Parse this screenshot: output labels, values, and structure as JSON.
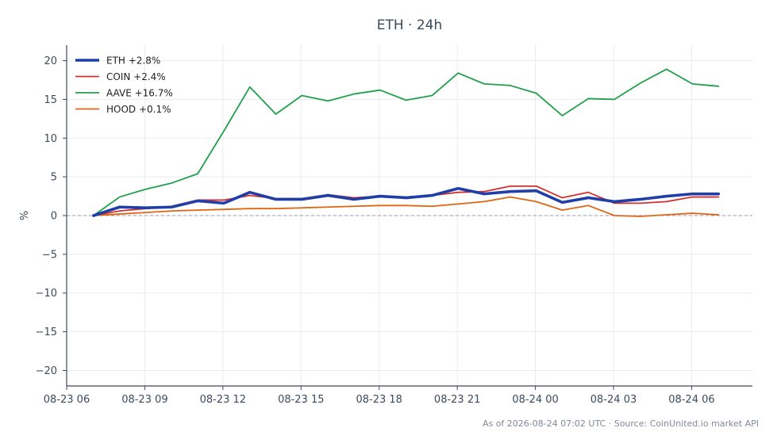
{
  "chart_data": {
    "type": "line",
    "title": "ETH · 24h",
    "xlabel": "",
    "ylabel": "%",
    "ylim": [
      -22,
      22
    ],
    "yticks": [
      -20,
      -15,
      -10,
      -5,
      0,
      5,
      10,
      15,
      20
    ],
    "ytick_labels": [
      "−20",
      "−15",
      "−10",
      "−5",
      "0",
      "5",
      "10",
      "15",
      "20"
    ],
    "xlim": [
      "2026-08-23 06:00",
      "2026-08-24 08:20"
    ],
    "xticks": [
      "2026-08-23 06:00",
      "2026-08-23 09:00",
      "2026-08-23 12:00",
      "2026-08-23 15:00",
      "2026-08-23 18:00",
      "2026-08-23 21:00",
      "2026-08-24 00:00",
      "2026-08-24 03:00",
      "2026-08-24 06:00"
    ],
    "xtick_labels": [
      "08-23 06",
      "08-23 09",
      "08-23 12",
      "08-23 15",
      "08-23 18",
      "08-23 21",
      "08-24 00",
      "08-24 03",
      "08-24 06"
    ],
    "x": [
      "2026-08-23 07:02",
      "2026-08-23 08:02",
      "2026-08-23 09:02",
      "2026-08-23 10:02",
      "2026-08-23 11:02",
      "2026-08-23 12:02",
      "2026-08-23 13:02",
      "2026-08-23 14:02",
      "2026-08-23 15:02",
      "2026-08-23 16:02",
      "2026-08-23 17:02",
      "2026-08-23 18:02",
      "2026-08-23 19:02",
      "2026-08-23 20:02",
      "2026-08-23 21:02",
      "2026-08-23 22:02",
      "2026-08-23 23:02",
      "2026-08-24 00:02",
      "2026-08-24 01:02",
      "2026-08-24 02:02",
      "2026-08-24 03:02",
      "2026-08-24 04:02",
      "2026-08-24 05:02",
      "2026-08-24 06:02",
      "2026-08-24 07:02"
    ],
    "series": [
      {
        "name": "ETH +2.8%",
        "color": "#1f3ea8",
        "width": 3.6,
        "values": [
          0,
          1.1,
          1.0,
          1.1,
          1.9,
          1.6,
          3.0,
          2.1,
          2.1,
          2.6,
          2.1,
          2.5,
          2.3,
          2.6,
          3.5,
          2.8,
          3.1,
          3.2,
          1.7,
          2.3,
          1.8,
          2.1,
          2.5,
          2.8,
          2.8
        ]
      },
      {
        "name": "COIN +2.4%",
        "color": "#d62f2f",
        "width": 1.8,
        "values": [
          0,
          0.6,
          0.9,
          1.2,
          2.0,
          2.0,
          2.6,
          2.2,
          2.2,
          2.7,
          2.3,
          2.5,
          2.4,
          2.6,
          3.0,
          3.1,
          3.8,
          3.8,
          2.3,
          3.0,
          1.6,
          1.6,
          1.8,
          2.4,
          2.4
        ]
      },
      {
        "name": "AAVE +16.7%",
        "color": "#21a04a",
        "width": 1.8,
        "values": [
          0,
          2.4,
          3.4,
          4.2,
          5.4,
          10.9,
          16.6,
          13.1,
          15.5,
          14.8,
          15.7,
          16.2,
          14.9,
          15.5,
          18.4,
          17.0,
          16.8,
          15.8,
          12.9,
          15.1,
          15.0,
          17.1,
          18.9,
          17.0,
          16.7
        ]
      },
      {
        "name": "HOOD +0.1%",
        "color": "#e06512",
        "width": 1.8,
        "values": [
          0,
          0.2,
          0.4,
          0.6,
          0.7,
          0.8,
          0.9,
          0.9,
          1.0,
          1.1,
          1.2,
          1.3,
          1.3,
          1.2,
          1.5,
          1.8,
          2.4,
          1.8,
          0.7,
          1.3,
          0.0,
          -0.1,
          0.1,
          0.3,
          0.1
        ]
      }
    ],
    "zero_line": true,
    "grid": true,
    "legend_position": "top-left"
  },
  "footer": "As of 2026-08-24 07:02 UTC · Source: CoinUnited.io market API"
}
